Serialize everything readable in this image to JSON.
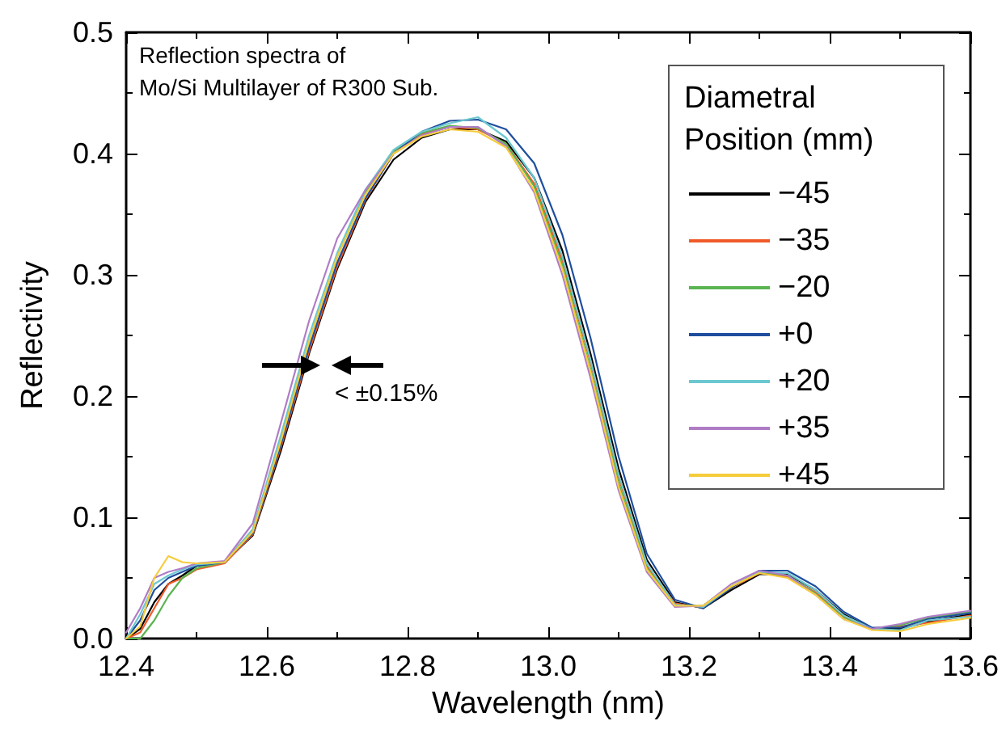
{
  "chart_data": {
    "type": "line",
    "title": "Reflection spectra of\nMo/Si Multilayer of R300 Sub.",
    "xlabel": "Wavelength (nm)",
    "ylabel": "Reflectivity",
    "legend_title": "Diametral\nPosition (mm)",
    "legend": "top right",
    "marker": "none",
    "line_style": "solid",
    "grid": false,
    "annotations": [
      "< ±0.15%"
    ],
    "xlim": [
      12.4,
      13.6
    ],
    "xticks": [
      12.4,
      12.6,
      12.8,
      {
        "value": 13,
        "label": "13.0"
      },
      13.2,
      13.4,
      13.6
    ],
    "ylim": [
      0,
      0.5
    ],
    "yticks": [
      {
        "value": 0,
        "label": "0.0"
      },
      0.1,
      0.2,
      0.3,
      0.4,
      0.5
    ],
    "x": [
      12.4,
      12.42,
      12.44,
      12.46,
      12.48,
      12.5,
      12.54,
      12.58,
      12.62,
      12.66,
      12.7,
      12.74,
      12.78,
      12.82,
      12.86,
      12.9,
      12.94,
      12.98,
      13.02,
      13.06,
      13.1,
      13.14,
      13.18,
      13.22,
      13.26,
      13.3,
      13.34,
      13.38,
      13.42,
      13.46,
      13.5,
      13.54,
      13.6
    ],
    "series": [
      {
        "name": "−45",
        "color": "#000000",
        "values": [
          0,
          0.008,
          0.03,
          0.045,
          0.052,
          0.06,
          0.063,
          0.085,
          0.155,
          0.235,
          0.305,
          0.36,
          0.395,
          0.413,
          0.42,
          0.42,
          0.41,
          0.38,
          0.32,
          0.235,
          0.14,
          0.065,
          0.03,
          0.025,
          0.04,
          0.053,
          0.053,
          0.04,
          0.02,
          0.008,
          0.008,
          0.014,
          0.02
        ]
      },
      {
        "name": "−35",
        "color": "#f05a28",
        "values": [
          0,
          0.005,
          0.025,
          0.045,
          0.05,
          0.057,
          0.062,
          0.086,
          0.158,
          0.237,
          0.307,
          0.362,
          0.4,
          0.416,
          0.422,
          0.42,
          0.408,
          0.375,
          0.312,
          0.228,
          0.133,
          0.06,
          0.029,
          0.0255,
          0.042,
          0.054,
          0.051,
          0.038,
          0.018,
          0.0085,
          0.01,
          0.013,
          0.019
        ]
      },
      {
        "name": "−20",
        "color": "#5ab450",
        "values": [
          0,
          0,
          0.015,
          0.035,
          0.05,
          0.058,
          0.063,
          0.09,
          0.165,
          0.245,
          0.315,
          0.368,
          0.402,
          0.417,
          0.423,
          0.421,
          0.408,
          0.373,
          0.308,
          0.222,
          0.128,
          0.058,
          0.027,
          0.027,
          0.043,
          0.055,
          0.052,
          0.037,
          0.017,
          0.008,
          0.011,
          0.017,
          0.022
        ]
      },
      {
        "name": "+0",
        "color": "#1f4e9e",
        "values": [
          0,
          0.015,
          0.04,
          0.05,
          0.055,
          0.06,
          0.063,
          0.087,
          0.16,
          0.24,
          0.31,
          0.363,
          0.4,
          0.418,
          0.427,
          0.428,
          0.42,
          0.392,
          0.333,
          0.248,
          0.15,
          0.07,
          0.032,
          0.025,
          0.042,
          0.056,
          0.056,
          0.043,
          0.022,
          0.009,
          0.009,
          0.016,
          0.021
        ]
      },
      {
        "name": "+20",
        "color": "#6cc8d0",
        "values": [
          0,
          0.02,
          0.045,
          0.052,
          0.057,
          0.061,
          0.063,
          0.09,
          0.168,
          0.25,
          0.318,
          0.37,
          0.403,
          0.418,
          0.425,
          0.43,
          0.413,
          0.38,
          0.315,
          0.23,
          0.135,
          0.062,
          0.028,
          0.026,
          0.043,
          0.055,
          0.054,
          0.04,
          0.019,
          0.008,
          0.007,
          0.015,
          0.018
        ]
      },
      {
        "name": "+35",
        "color": "#b07cc6",
        "values": [
          0.005,
          0.025,
          0.05,
          0.055,
          0.058,
          0.062,
          0.064,
          0.095,
          0.178,
          0.262,
          0.33,
          0.37,
          0.4,
          0.415,
          0.422,
          0.422,
          0.406,
          0.368,
          0.3,
          0.215,
          0.122,
          0.055,
          0.026,
          0.027,
          0.045,
          0.056,
          0.052,
          0.036,
          0.016,
          0.008,
          0.012,
          0.018,
          0.023
        ]
      },
      {
        "name": "+45",
        "color": "#f5cc3c",
        "values": [
          0,
          0.01,
          0.05,
          0.068,
          0.063,
          0.062,
          0.063,
          0.088,
          0.163,
          0.245,
          0.315,
          0.366,
          0.4,
          0.414,
          0.42,
          0.418,
          0.405,
          0.37,
          0.305,
          0.22,
          0.125,
          0.057,
          0.027,
          0.027,
          0.043,
          0.054,
          0.05,
          0.036,
          0.016,
          0.007,
          0.006,
          0.012,
          0.017
        ]
      }
    ]
  }
}
